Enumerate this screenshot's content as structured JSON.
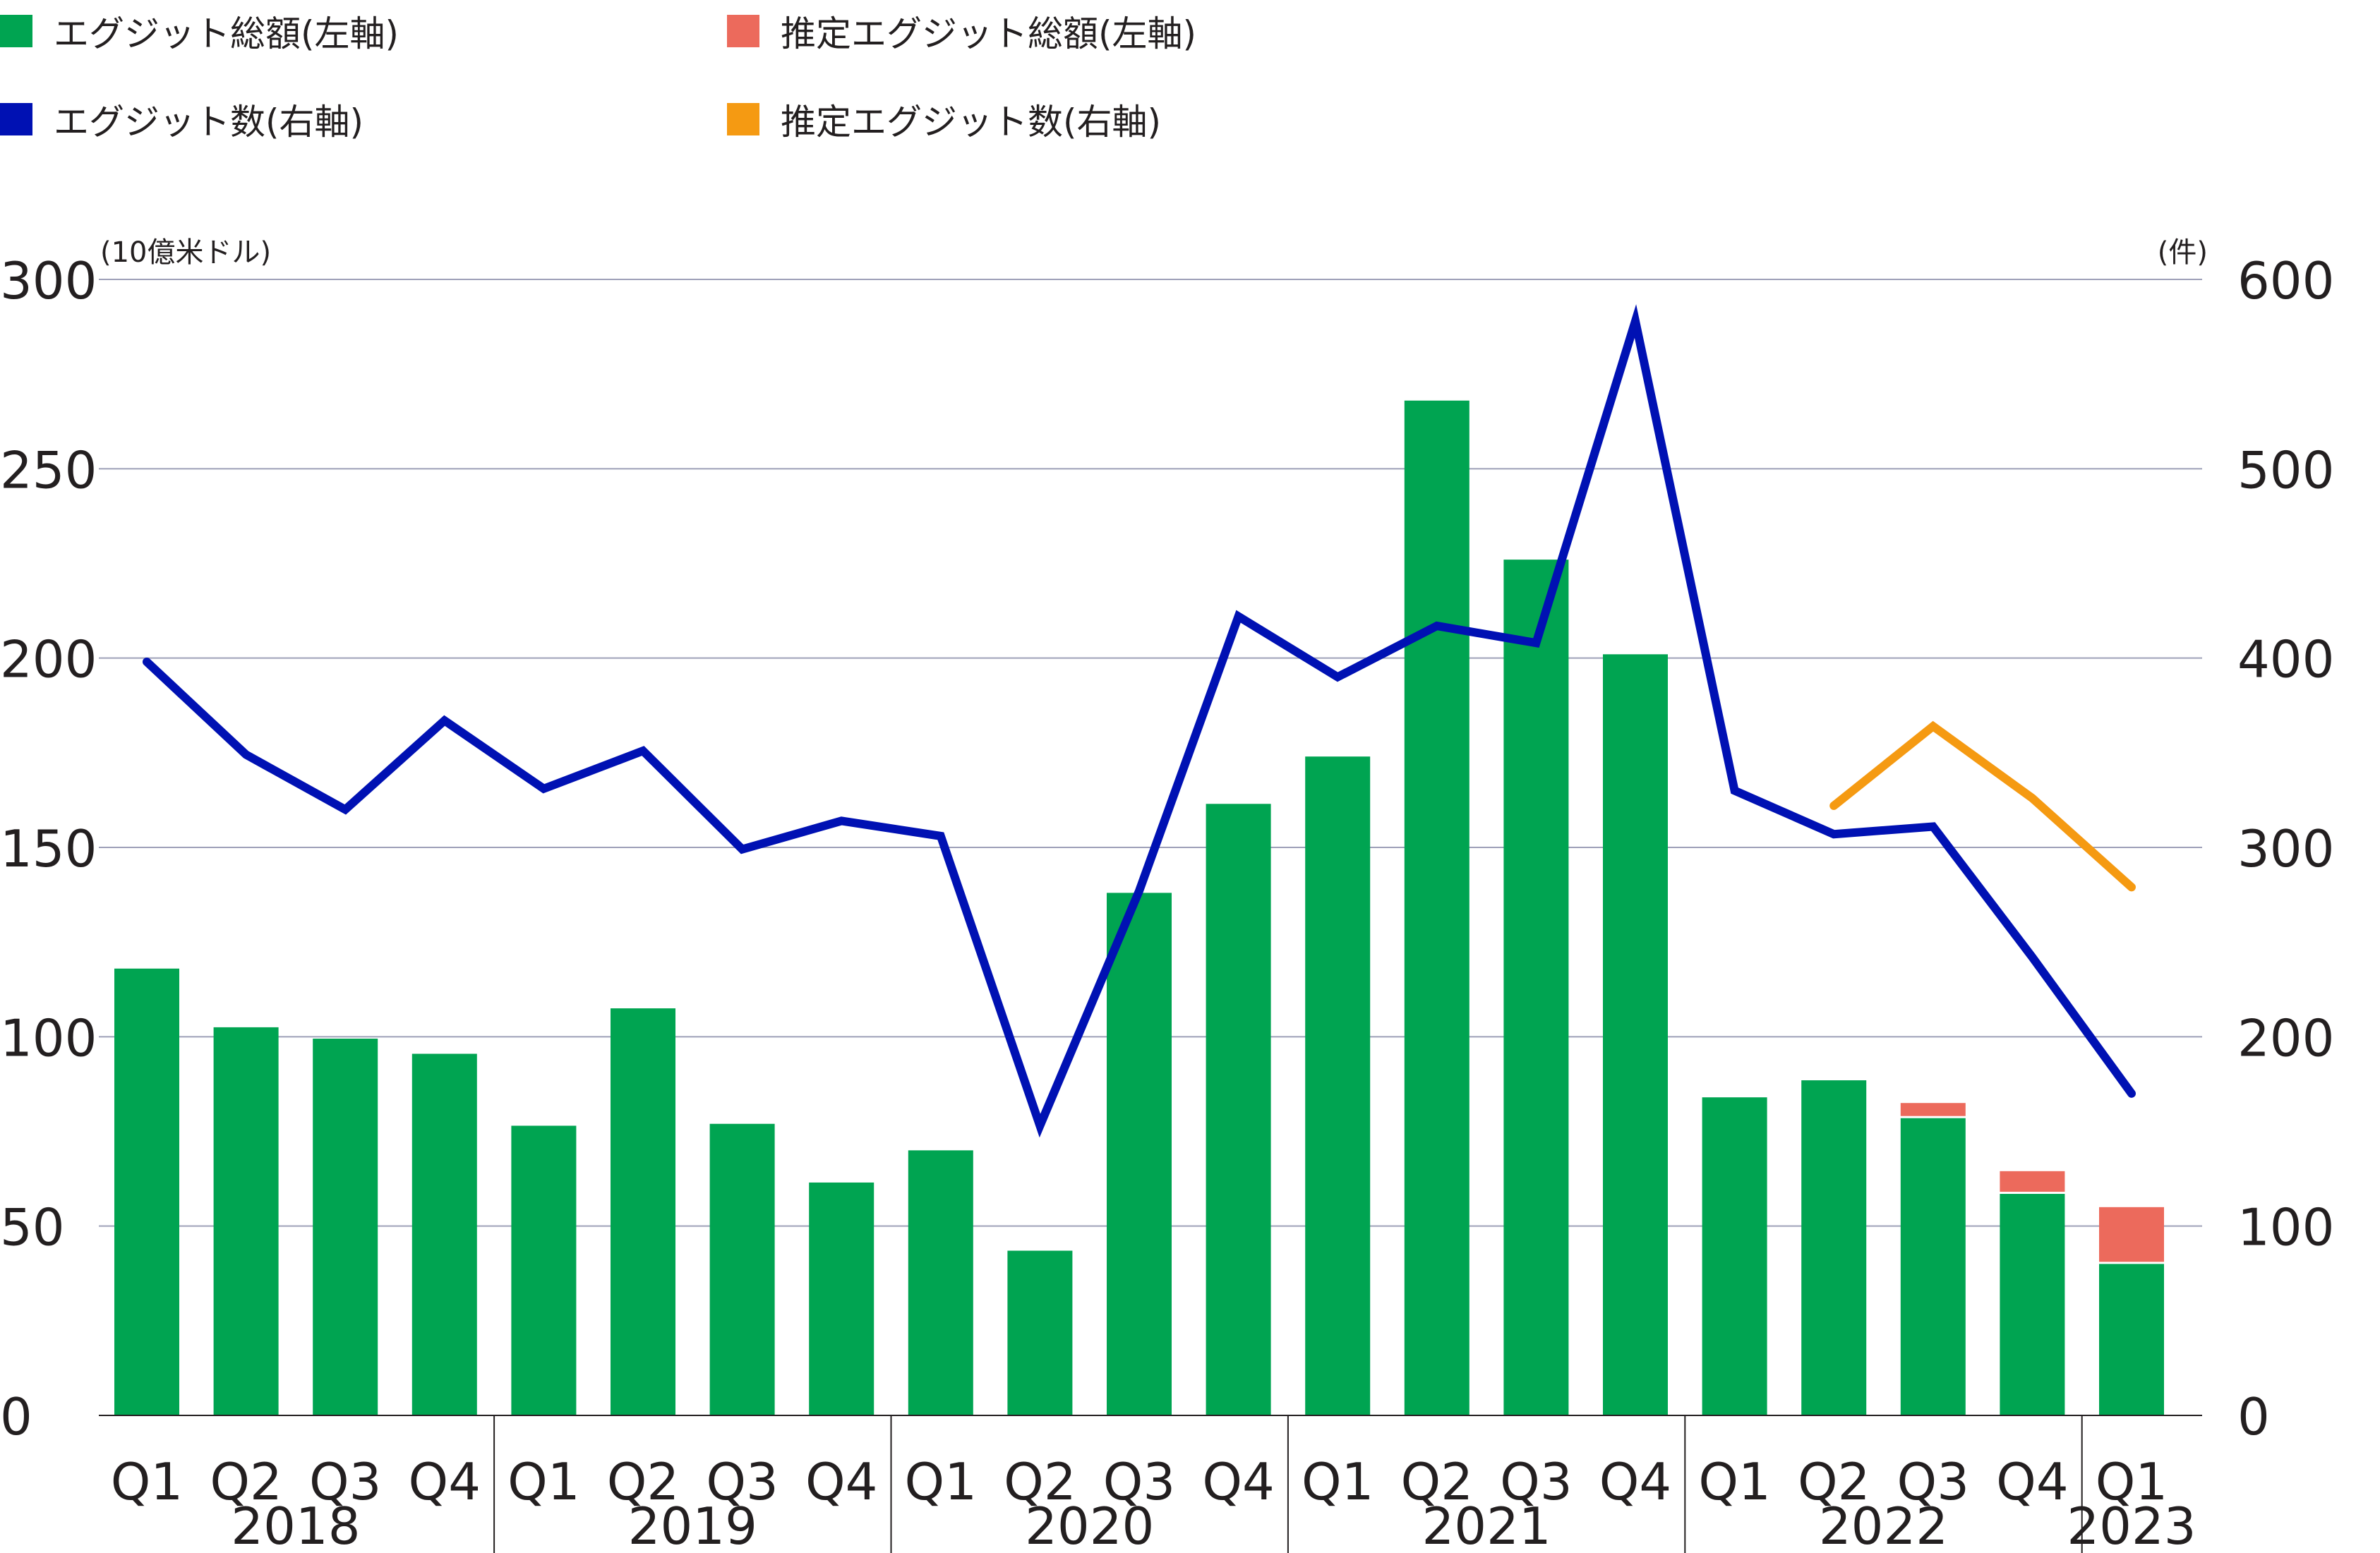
{
  "legend": [
    {
      "label": "エグジット総額(左軸)",
      "color": "#00a451"
    },
    {
      "label": "推定エグジット総額(左軸)",
      "color": "#ec6a5c"
    },
    {
      "label": "エグジット数(右軸)",
      "color": "#0011b3"
    },
    {
      "label": "推定エグジット数(右軸)",
      "color": "#f59a12"
    }
  ],
  "chart_data": {
    "type": "bar",
    "left_axis": {
      "unit_label": "(10億米ドル)",
      "ylim": [
        0,
        300
      ],
      "ticks": [
        0,
        50,
        100,
        150,
        200,
        250,
        300
      ]
    },
    "right_axis": {
      "unit_label": "(件)",
      "ylim": [
        0,
        600
      ],
      "ticks": [
        0,
        100,
        200,
        300,
        400,
        500,
        600
      ]
    },
    "grid": true,
    "legend_position": "top-left",
    "categories": [
      "Q1",
      "Q2",
      "Q3",
      "Q4",
      "Q1",
      "Q2",
      "Q3",
      "Q4",
      "Q1",
      "Q2",
      "Q3",
      "Q4",
      "Q1",
      "Q2",
      "Q3",
      "Q4",
      "Q1",
      "Q2",
      "Q3",
      "Q4",
      "Q1"
    ],
    "years": [
      {
        "label": "2018",
        "quarters": 4
      },
      {
        "label": "2019",
        "quarters": 4
      },
      {
        "label": "2020",
        "quarters": 4
      },
      {
        "label": "2021",
        "quarters": 4
      },
      {
        "label": "2022",
        "quarters": 4
      },
      {
        "label": "2023",
        "quarters": 1
      }
    ],
    "series": [
      {
        "name": "エグジット総額(左軸)",
        "kind": "bar",
        "axis": "left",
        "color": "#00a451",
        "values": [
          118,
          102.5,
          99.5,
          95.5,
          76.5,
          107.5,
          77,
          61.5,
          70,
          43.5,
          138,
          161.5,
          174,
          268,
          226,
          201,
          84,
          88.5,
          78.5,
          58.5,
          40
        ]
      },
      {
        "name": "推定エグジット総額(左軸)",
        "kind": "bar-stack",
        "axis": "left",
        "color": "#ec6a5c",
        "values": [
          null,
          null,
          null,
          null,
          null,
          null,
          null,
          null,
          null,
          null,
          null,
          null,
          null,
          null,
          null,
          null,
          null,
          null,
          4,
          6,
          15
        ]
      },
      {
        "name": "エグジット数(右軸)",
        "kind": "line",
        "axis": "right",
        "color": "#0011b3",
        "values": [
          398,
          349,
          320,
          367,
          331,
          351,
          299,
          314,
          306,
          153,
          277,
          422,
          390,
          417,
          408,
          578,
          330,
          307,
          311,
          242,
          170
        ]
      },
      {
        "name": "推定エグジット数(右軸)",
        "kind": "line",
        "axis": "right",
        "color": "#f59a12",
        "values": [
          null,
          null,
          null,
          null,
          null,
          null,
          null,
          null,
          null,
          null,
          null,
          null,
          null,
          null,
          null,
          null,
          null,
          322,
          364,
          326,
          279
        ]
      }
    ]
  }
}
